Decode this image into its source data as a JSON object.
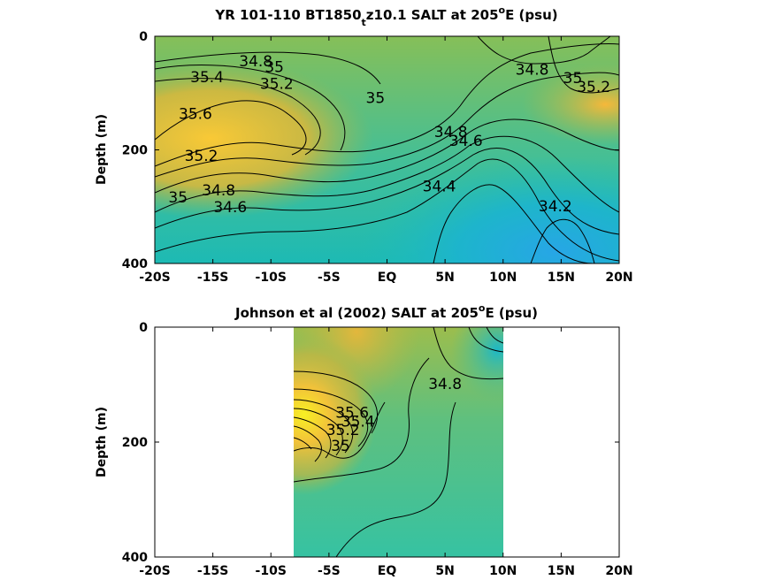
{
  "chart_data": [
    {
      "type": "heatmap",
      "subtype": "filled-contour",
      "title": "YR 101-110 BT1850",
      "title_subscript": "t",
      "title_tail": "z10.1 SALT at 205",
      "title_superscript": "o",
      "title_end": "E (psu)",
      "ylabel": "Depth (m)",
      "xlabel": "",
      "x_ticks": [
        "-20S",
        "-15S",
        "-10S",
        "-5S",
        "EQ",
        "5N",
        "10N",
        "15N",
        "20N"
      ],
      "x_tick_values": [
        -20,
        -15,
        -10,
        -5,
        0,
        5,
        10,
        15,
        20
      ],
      "y_ticks": [
        "0",
        "200",
        "400"
      ],
      "y_tick_values": [
        0,
        200,
        400
      ],
      "xlim": [
        -20,
        20
      ],
      "ylim": [
        0,
        400
      ],
      "y_reversed": true,
      "colormap": "parula",
      "data_coverage": [
        -20,
        20
      ],
      "contour_labels": [
        {
          "text": "34.8",
          "x": -11.3,
          "y": 45
        },
        {
          "text": "35",
          "x": -9.7,
          "y": 55
        },
        {
          "text": "35.4",
          "x": -15.5,
          "y": 73
        },
        {
          "text": "35.2",
          "x": -9.5,
          "y": 85
        },
        {
          "text": "35.6",
          "x": -16.5,
          "y": 138
        },
        {
          "text": "35",
          "x": -1.0,
          "y": 110
        },
        {
          "text": "34.8",
          "x": 5.5,
          "y": 170
        },
        {
          "text": "34.6",
          "x": 6.8,
          "y": 185
        },
        {
          "text": "35.2",
          "x": -16.0,
          "y": 212
        },
        {
          "text": "34.8",
          "x": -14.5,
          "y": 272
        },
        {
          "text": "35",
          "x": -18.0,
          "y": 285
        },
        {
          "text": "34.6",
          "x": -13.5,
          "y": 302
        },
        {
          "text": "34.4",
          "x": 4.5,
          "y": 265
        },
        {
          "text": "34.8",
          "x": 12.5,
          "y": 60
        },
        {
          "text": "35",
          "x": 16.0,
          "y": 75
        },
        {
          "text": "35.2",
          "x": 17.8,
          "y": 90
        },
        {
          "text": "34.2",
          "x": 14.5,
          "y": 300
        }
      ]
    },
    {
      "type": "heatmap",
      "subtype": "filled-contour",
      "title": "Johnson et al (2002) SALT at 205",
      "title_superscript": "o",
      "title_end": "E (psu)",
      "ylabel": "Depth (m)",
      "xlabel": "",
      "x_ticks": [
        "-20S",
        "-15S",
        "-10S",
        "-5S",
        "EQ",
        "5N",
        "10N",
        "15N",
        "20N"
      ],
      "x_tick_values": [
        -20,
        -15,
        -10,
        -5,
        0,
        5,
        10,
        15,
        20
      ],
      "y_ticks": [
        "0",
        "200",
        "400"
      ],
      "y_tick_values": [
        0,
        200,
        400
      ],
      "xlim": [
        -20,
        20
      ],
      "ylim": [
        0,
        400
      ],
      "y_reversed": true,
      "colormap": "parula",
      "data_coverage": [
        -8,
        10
      ],
      "contour_labels": [
        {
          "text": "34.8",
          "x": 5.0,
          "y": 100
        },
        {
          "text": "35.6",
          "x": -3.0,
          "y": 150
        },
        {
          "text": "35.4",
          "x": -2.5,
          "y": 165
        },
        {
          "text": "35.2",
          "x": -3.8,
          "y": 180
        },
        {
          "text": "35",
          "x": -4.0,
          "y": 208
        }
      ]
    }
  ]
}
